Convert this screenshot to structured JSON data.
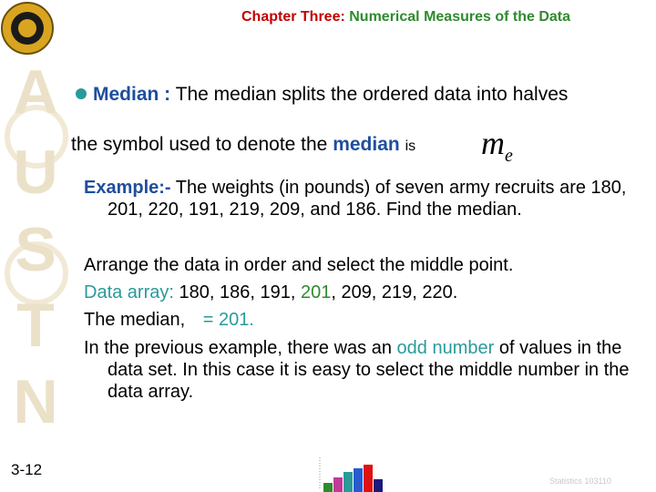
{
  "header": {
    "title_part1": "Chapter Three:",
    "title_part2": "Numerical Measures of the Data"
  },
  "sidebar_letters": [
    "A",
    "U",
    "S",
    "T",
    "N"
  ],
  "bullet": {
    "term": "Median :",
    "text": "The median splits the ordered data into halves"
  },
  "symbol_line": {
    "text": "the symbol used to denote the",
    "term": "median",
    "is": "is",
    "symbol": "m",
    "subscript": "e"
  },
  "example": {
    "label": "Example:-",
    "text": "The weights (in pounds) of seven army recruits are 180, 201, 220, 191, 219, 209, and 186. Find the median."
  },
  "arrange": "Arrange the data in order and select the middle point.",
  "data_array": {
    "label": "Data array:",
    "before": "180, 186, 191,",
    "middle": "201",
    "after": ", 209, 219, 220."
  },
  "median_line": {
    "label": "The median,",
    "value": "= 201."
  },
  "odd": {
    "before": "In the previous example, there was an",
    "highlight": "odd number",
    "after": "of values in the data set.  In this case it is easy to select the middle number in the data array."
  },
  "footer": {
    "slide_number": "3-12",
    "course": "Statistics 103110"
  }
}
